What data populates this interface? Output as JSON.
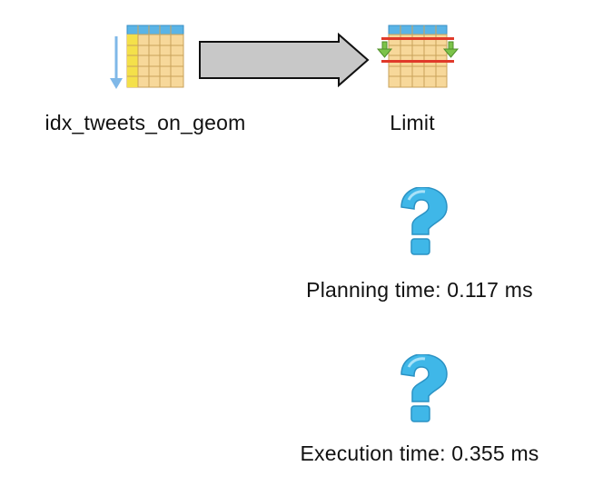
{
  "plan": {
    "nodes": [
      {
        "label": "idx_tweets_on_geom",
        "icon": "index-scan-table-icon"
      },
      {
        "label": "Limit",
        "icon": "limit-table-icon"
      }
    ],
    "arrow": {
      "icon": "flow-arrow-icon",
      "fill": "#c8c8c8",
      "stroke": "#111111"
    }
  },
  "timings": {
    "planning": {
      "label": "Planning time: 0.117 ms",
      "icon": "question-icon"
    },
    "execution": {
      "label": "Execution time: 0.355 ms",
      "icon": "question-icon"
    }
  },
  "colors": {
    "table_header": "#5ab4e6",
    "table_body": "#f7d89a",
    "table_grid": "#c9a25a",
    "index_column": "#f4e04a",
    "index_arrow": "#7fb8e8",
    "limit_bar": "#e03a2a",
    "limit_arrow": "#7cc34a",
    "question": "#3fb7e8"
  }
}
